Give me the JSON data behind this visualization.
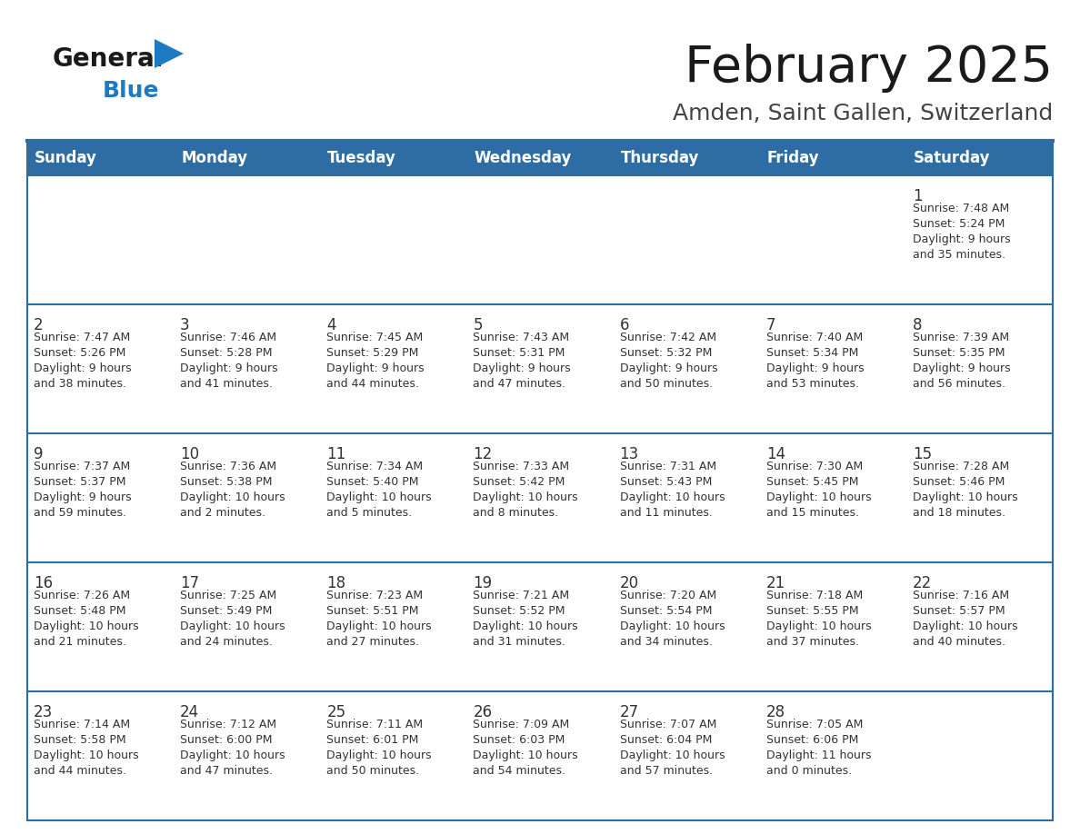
{
  "title": "February 2025",
  "subtitle": "Amden, Saint Gallen, Switzerland",
  "header_bg": "#2e6da4",
  "header_text": "#ffffff",
  "cell_bg_all": "#ffffff",
  "cell_bg_first_strip": "#f0f0f0",
  "border_color": "#2e6da4",
  "day_names": [
    "Sunday",
    "Monday",
    "Tuesday",
    "Wednesday",
    "Thursday",
    "Friday",
    "Saturday"
  ],
  "title_color": "#1a1a1a",
  "subtitle_color": "#444444",
  "day_num_color": "#333333",
  "info_color": "#333333",
  "logo_general_color": "#1a1a1a",
  "logo_blue_color": "#1e7bc2",
  "weeks": [
    [
      {
        "day": null,
        "info": null
      },
      {
        "day": null,
        "info": null
      },
      {
        "day": null,
        "info": null
      },
      {
        "day": null,
        "info": null
      },
      {
        "day": null,
        "info": null
      },
      {
        "day": null,
        "info": null
      },
      {
        "day": 1,
        "info": "Sunrise: 7:48 AM\nSunset: 5:24 PM\nDaylight: 9 hours\nand 35 minutes."
      }
    ],
    [
      {
        "day": 2,
        "info": "Sunrise: 7:47 AM\nSunset: 5:26 PM\nDaylight: 9 hours\nand 38 minutes."
      },
      {
        "day": 3,
        "info": "Sunrise: 7:46 AM\nSunset: 5:28 PM\nDaylight: 9 hours\nand 41 minutes."
      },
      {
        "day": 4,
        "info": "Sunrise: 7:45 AM\nSunset: 5:29 PM\nDaylight: 9 hours\nand 44 minutes."
      },
      {
        "day": 5,
        "info": "Sunrise: 7:43 AM\nSunset: 5:31 PM\nDaylight: 9 hours\nand 47 minutes."
      },
      {
        "day": 6,
        "info": "Sunrise: 7:42 AM\nSunset: 5:32 PM\nDaylight: 9 hours\nand 50 minutes."
      },
      {
        "day": 7,
        "info": "Sunrise: 7:40 AM\nSunset: 5:34 PM\nDaylight: 9 hours\nand 53 minutes."
      },
      {
        "day": 8,
        "info": "Sunrise: 7:39 AM\nSunset: 5:35 PM\nDaylight: 9 hours\nand 56 minutes."
      }
    ],
    [
      {
        "day": 9,
        "info": "Sunrise: 7:37 AM\nSunset: 5:37 PM\nDaylight: 9 hours\nand 59 minutes."
      },
      {
        "day": 10,
        "info": "Sunrise: 7:36 AM\nSunset: 5:38 PM\nDaylight: 10 hours\nand 2 minutes."
      },
      {
        "day": 11,
        "info": "Sunrise: 7:34 AM\nSunset: 5:40 PM\nDaylight: 10 hours\nand 5 minutes."
      },
      {
        "day": 12,
        "info": "Sunrise: 7:33 AM\nSunset: 5:42 PM\nDaylight: 10 hours\nand 8 minutes."
      },
      {
        "day": 13,
        "info": "Sunrise: 7:31 AM\nSunset: 5:43 PM\nDaylight: 10 hours\nand 11 minutes."
      },
      {
        "day": 14,
        "info": "Sunrise: 7:30 AM\nSunset: 5:45 PM\nDaylight: 10 hours\nand 15 minutes."
      },
      {
        "day": 15,
        "info": "Sunrise: 7:28 AM\nSunset: 5:46 PM\nDaylight: 10 hours\nand 18 minutes."
      }
    ],
    [
      {
        "day": 16,
        "info": "Sunrise: 7:26 AM\nSunset: 5:48 PM\nDaylight: 10 hours\nand 21 minutes."
      },
      {
        "day": 17,
        "info": "Sunrise: 7:25 AM\nSunset: 5:49 PM\nDaylight: 10 hours\nand 24 minutes."
      },
      {
        "day": 18,
        "info": "Sunrise: 7:23 AM\nSunset: 5:51 PM\nDaylight: 10 hours\nand 27 minutes."
      },
      {
        "day": 19,
        "info": "Sunrise: 7:21 AM\nSunset: 5:52 PM\nDaylight: 10 hours\nand 31 minutes."
      },
      {
        "day": 20,
        "info": "Sunrise: 7:20 AM\nSunset: 5:54 PM\nDaylight: 10 hours\nand 34 minutes."
      },
      {
        "day": 21,
        "info": "Sunrise: 7:18 AM\nSunset: 5:55 PM\nDaylight: 10 hours\nand 37 minutes."
      },
      {
        "day": 22,
        "info": "Sunrise: 7:16 AM\nSunset: 5:57 PM\nDaylight: 10 hours\nand 40 minutes."
      }
    ],
    [
      {
        "day": 23,
        "info": "Sunrise: 7:14 AM\nSunset: 5:58 PM\nDaylight: 10 hours\nand 44 minutes."
      },
      {
        "day": 24,
        "info": "Sunrise: 7:12 AM\nSunset: 6:00 PM\nDaylight: 10 hours\nand 47 minutes."
      },
      {
        "day": 25,
        "info": "Sunrise: 7:11 AM\nSunset: 6:01 PM\nDaylight: 10 hours\nand 50 minutes."
      },
      {
        "day": 26,
        "info": "Sunrise: 7:09 AM\nSunset: 6:03 PM\nDaylight: 10 hours\nand 54 minutes."
      },
      {
        "day": 27,
        "info": "Sunrise: 7:07 AM\nSunset: 6:04 PM\nDaylight: 10 hours\nand 57 minutes."
      },
      {
        "day": 28,
        "info": "Sunrise: 7:05 AM\nSunset: 6:06 PM\nDaylight: 11 hours\nand 0 minutes."
      },
      {
        "day": null,
        "info": null
      }
    ]
  ]
}
